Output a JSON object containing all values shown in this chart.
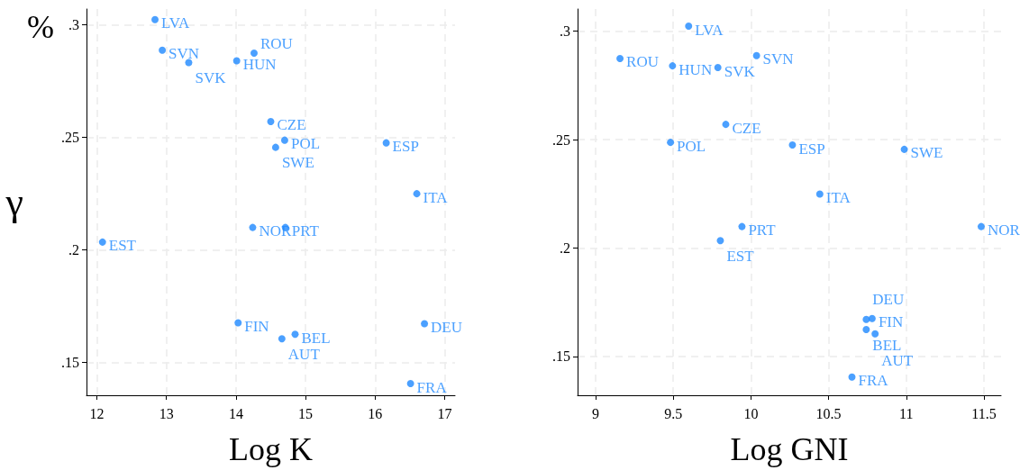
{
  "chart_data": [
    {
      "type": "scatter",
      "xlabel": "Log K",
      "ylabel": "γ",
      "annotations": [
        "%"
      ],
      "color": "#1e88ff",
      "marker": "circle",
      "grid": true,
      "x": [
        12.835,
        12.94,
        13.32,
        14.01,
        14.26,
        14.5,
        14.7,
        14.57,
        16.16,
        16.6,
        14.24,
        14.71,
        12.08,
        14.03,
        16.71,
        14.85,
        14.66,
        16.51
      ],
      "values": [
        0.3023,
        0.2887,
        0.2832,
        0.284,
        0.2874,
        0.257,
        0.2487,
        0.2455,
        0.2475,
        0.2249,
        0.2099,
        0.2099,
        0.2034,
        0.1675,
        0.1671,
        0.1624,
        0.1604,
        0.1405
      ],
      "value_labels": [
        "LVA",
        "SVN",
        "SVK",
        "HUN",
        "ROU",
        "CZE",
        "POL",
        "SWE",
        "ESP",
        "ITA",
        "NOR",
        "PRT",
        "EST",
        "FIN",
        "DEU",
        "BEL",
        "AUT",
        "FRA"
      ],
      "xlim": [
        11.85,
        17.15
      ],
      "xticks": [
        12,
        13,
        14,
        15,
        16,
        17
      ],
      "ylim": [
        0.1353,
        0.307
      ],
      "yticks": [
        {
          "value": 0.15,
          "label": ".15"
        },
        {
          "value": 0.2,
          "label": ".2"
        },
        {
          "value": 0.25,
          "label": ".25"
        },
        {
          "value": 0.3,
          "label": ".3"
        }
      ]
    },
    {
      "type": "scatter",
      "xlabel": "Log GNI",
      "color": "#1e88ff",
      "marker": "circle",
      "grid": true,
      "x": [
        9.599,
        10.036,
        9.787,
        9.495,
        9.157,
        9.838,
        9.482,
        10.987,
        10.267,
        10.443,
        11.482,
        9.942,
        9.803,
        10.78,
        10.742,
        10.742,
        10.799,
        10.65
      ],
      "values": [
        0.3023,
        0.2887,
        0.2832,
        0.284,
        0.2874,
        0.257,
        0.2487,
        0.2455,
        0.2475,
        0.2249,
        0.2099,
        0.2099,
        0.2034,
        0.1675,
        0.1671,
        0.1624,
        0.1604,
        0.1405
      ],
      "value_labels": [
        "LVA",
        "SVN",
        "SVK",
        "HUN",
        "ROU",
        "CZE",
        "POL",
        "SWE",
        "ESP",
        "ITA",
        "NOR",
        "PRT",
        "EST",
        "FIN",
        "DEU",
        "BEL",
        "AUT",
        "FRA"
      ],
      "xlim": [
        8.884,
        11.61
      ],
      "xticks": [
        9,
        9.5,
        10,
        10.5,
        11,
        11.5
      ],
      "ylim": [
        0.1321,
        0.3102
      ],
      "yticks": [
        {
          "value": 0.15,
          "label": ".15"
        },
        {
          "value": 0.2,
          "label": ".2"
        },
        {
          "value": 0.25,
          "label": ".25"
        },
        {
          "value": 0.3,
          "label": ".3"
        }
      ]
    }
  ]
}
